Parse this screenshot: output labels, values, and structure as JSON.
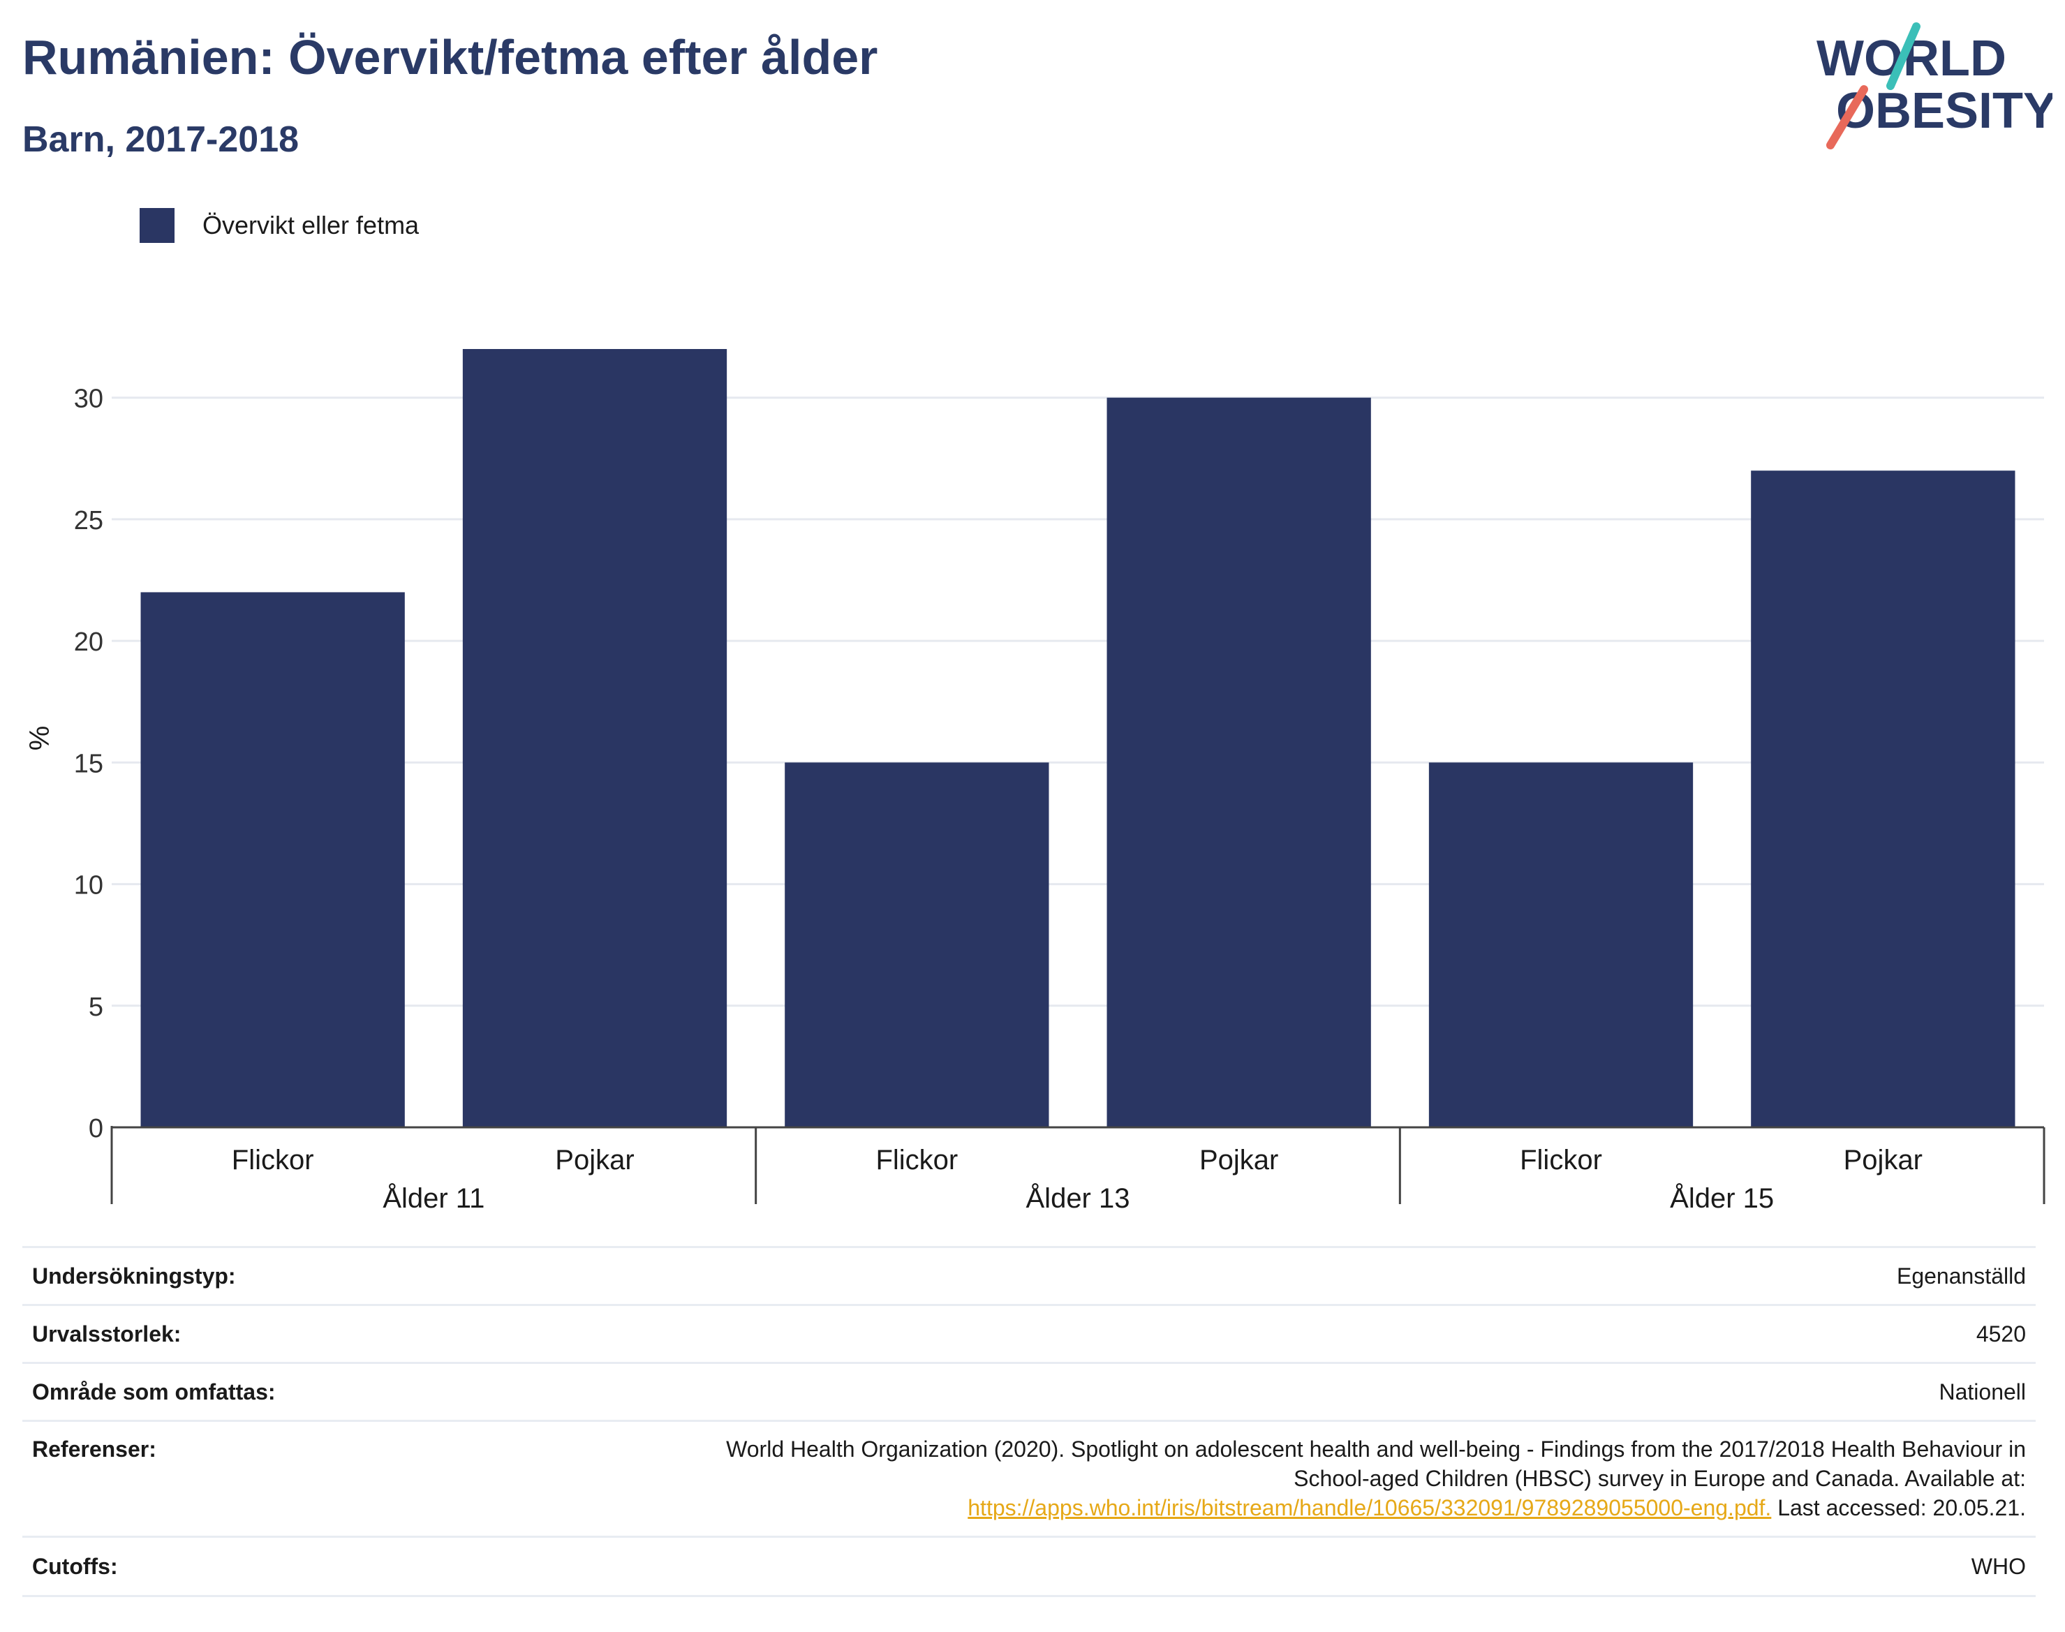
{
  "header": {
    "title": "Rumänien: Övervikt/fetma efter ålder",
    "subtitle": "Barn, 2017-2018"
  },
  "logo": {
    "line1": "WORLD",
    "line2": "OBESITY",
    "accent_teal": "#3bbfb8",
    "accent_coral": "#e8695a",
    "text_color": "#2a3a66"
  },
  "legend": {
    "label": "Övervikt eller fetma",
    "color": "#2a3663"
  },
  "chart_data": {
    "type": "bar",
    "ylabel": "%",
    "ylim": [
      0,
      32
    ],
    "yticks": [
      0,
      5,
      10,
      15,
      20,
      25,
      30
    ],
    "grid": true,
    "groups": [
      {
        "label": "Ålder 11",
        "categories": [
          "Flickor",
          "Pojkar"
        ],
        "values": [
          22,
          32
        ]
      },
      {
        "label": "Ålder 13",
        "categories": [
          "Flickor",
          "Pojkar"
        ],
        "values": [
          15,
          30
        ]
      },
      {
        "label": "Ålder 15",
        "categories": [
          "Flickor",
          "Pojkar"
        ],
        "values": [
          15,
          27
        ]
      }
    ],
    "series": [
      {
        "name": "Övervikt eller fetma",
        "color": "#2a3663"
      }
    ]
  },
  "info": {
    "survey_type": {
      "label": "Undersökningstyp:",
      "value": "Egenanställd"
    },
    "sample_size": {
      "label": "Urvalsstorlek:",
      "value": "4520"
    },
    "coverage": {
      "label": "Område som omfattas:",
      "value": "Nationell"
    },
    "references": {
      "label": "Referenser:",
      "line1": "World Health Organization (2020). Spotlight on adolescent health and well-being - Findings from the 2017/2018 Health Behaviour in",
      "line2": "School-aged Children (HBSC) survey in Europe and Canada. Available at:",
      "link": "https://apps.who.int/iris/bitstream/handle/10665/332091/9789289055000-eng.pdf.",
      "suffix": " Last accessed: 20.05.21."
    },
    "cutoffs": {
      "label": "Cutoffs:",
      "value": "WHO"
    }
  }
}
